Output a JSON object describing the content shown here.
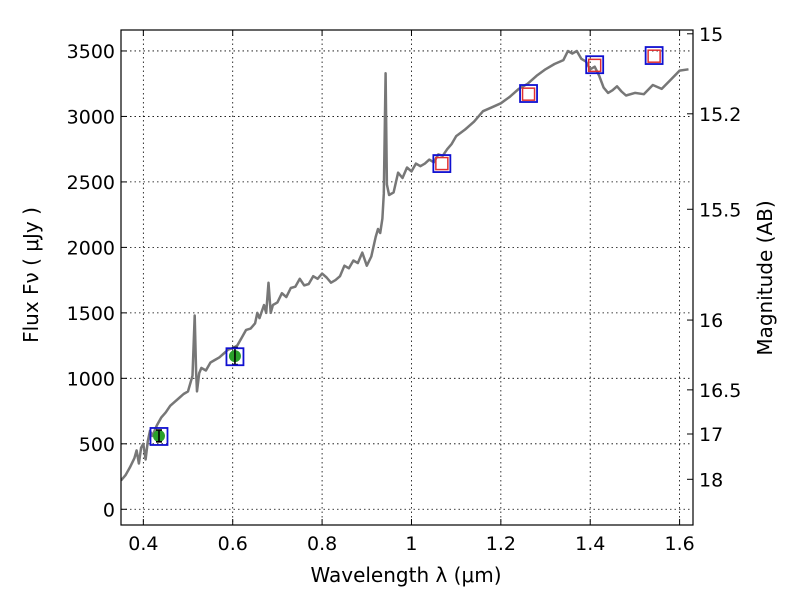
{
  "chart_data": {
    "type": "line",
    "title": "",
    "xlabel": "Wavelength  λ (μm)",
    "ylabel": "Flux  Fν  ( μJy )",
    "y2label": "Magnitude (AB)",
    "xlim": [
      0.35,
      1.63
    ],
    "ylim": [
      -120,
      3660
    ],
    "grid": true,
    "x_ticks": [
      0.4,
      0.6,
      0.8,
      1.0,
      1.2,
      1.4,
      1.6
    ],
    "x_tick_labels": [
      "0.4",
      "0.6",
      "0.8",
      "1",
      "1.2",
      "1.4",
      "1.6"
    ],
    "y_ticks": [
      0,
      500,
      1000,
      1500,
      2000,
      2500,
      3000,
      3500
    ],
    "y_tick_labels": [
      "0",
      "500",
      "1000",
      "1500",
      "2000",
      "2500",
      "3000",
      "3500"
    ],
    "y2_ticks": [
      {
        "label": "15",
        "flux": 3631
      },
      {
        "label": "15.2",
        "flux": 3020
      },
      {
        "label": "15.5",
        "flux": 2291
      },
      {
        "label": "16",
        "flux": 1445
      },
      {
        "label": "16.5",
        "flux": 912
      },
      {
        "label": "17",
        "flux": 575
      },
      {
        "label": "18",
        "flux": 229
      }
    ],
    "series": [
      {
        "type": "line",
        "color": "#777777",
        "x": [
          0.35,
          0.36,
          0.37,
          0.38,
          0.385,
          0.39,
          0.395,
          0.4,
          0.405,
          0.41,
          0.415,
          0.42,
          0.43,
          0.44,
          0.45,
          0.46,
          0.47,
          0.48,
          0.49,
          0.5,
          0.51,
          0.515,
          0.518,
          0.52,
          0.525,
          0.53,
          0.54,
          0.55,
          0.56,
          0.57,
          0.58,
          0.59,
          0.6,
          0.61,
          0.62,
          0.63,
          0.64,
          0.65,
          0.655,
          0.66,
          0.67,
          0.675,
          0.68,
          0.685,
          0.69,
          0.7,
          0.71,
          0.72,
          0.73,
          0.74,
          0.75,
          0.76,
          0.77,
          0.78,
          0.79,
          0.8,
          0.81,
          0.82,
          0.83,
          0.84,
          0.85,
          0.86,
          0.87,
          0.88,
          0.89,
          0.9,
          0.91,
          0.92,
          0.925,
          0.93,
          0.935,
          0.938,
          0.942,
          0.945,
          0.95,
          0.96,
          0.97,
          0.98,
          0.99,
          1.0,
          1.01,
          1.02,
          1.03,
          1.04,
          1.05,
          1.06,
          1.07,
          1.08,
          1.09,
          1.1,
          1.12,
          1.14,
          1.16,
          1.18,
          1.2,
          1.22,
          1.24,
          1.26,
          1.28,
          1.3,
          1.32,
          1.34,
          1.35,
          1.36,
          1.37,
          1.38,
          1.39,
          1.4,
          1.41,
          1.42,
          1.43,
          1.44,
          1.45,
          1.46,
          1.47,
          1.48,
          1.5,
          1.52,
          1.54,
          1.56,
          1.58,
          1.6,
          1.62
        ],
        "y": [
          220,
          260,
          320,
          390,
          450,
          350,
          470,
          500,
          380,
          520,
          600,
          560,
          640,
          700,
          740,
          790,
          820,
          850,
          880,
          900,
          1020,
          1480,
          1050,
          900,
          1040,
          1080,
          1060,
          1120,
          1140,
          1160,
          1190,
          1220,
          1230,
          1250,
          1310,
          1370,
          1380,
          1420,
          1500,
          1460,
          1560,
          1500,
          1730,
          1500,
          1560,
          1580,
          1650,
          1620,
          1690,
          1700,
          1760,
          1710,
          1720,
          1780,
          1760,
          1800,
          1770,
          1730,
          1750,
          1780,
          1860,
          1840,
          1900,
          1880,
          1960,
          1860,
          1930,
          2080,
          2140,
          2110,
          2220,
          2410,
          3330,
          2480,
          2400,
          2420,
          2570,
          2530,
          2610,
          2580,
          2640,
          2620,
          2640,
          2670,
          2650,
          2710,
          2700,
          2750,
          2790,
          2850,
          2900,
          2960,
          3040,
          3070,
          3100,
          3150,
          3210,
          3250,
          3310,
          3360,
          3400,
          3430,
          3500,
          3480,
          3500,
          3440,
          3420,
          3360,
          3380,
          3310,
          3220,
          3180,
          3200,
          3230,
          3190,
          3160,
          3180,
          3170,
          3240,
          3210,
          3280,
          3350,
          3360
        ]
      }
    ],
    "points_green": [
      {
        "x": 0.435,
        "y": 560,
        "yerr": 20
      },
      {
        "x": 0.605,
        "y": 1170,
        "yerr": 40
      }
    ],
    "points_red_open": [
      {
        "x": 1.068,
        "y": 2640
      },
      {
        "x": 1.262,
        "y": 3170
      },
      {
        "x": 1.41,
        "y": 3390
      },
      {
        "x": 1.543,
        "y": 3460
      }
    ],
    "boxes_blue": [
      {
        "x": 0.435,
        "y": 556
      },
      {
        "x": 0.605,
        "y": 1165
      },
      {
        "x": 1.068,
        "y": 2640
      },
      {
        "x": 1.262,
        "y": 3175
      },
      {
        "x": 1.41,
        "y": 3395
      },
      {
        "x": 1.543,
        "y": 3465
      }
    ]
  }
}
